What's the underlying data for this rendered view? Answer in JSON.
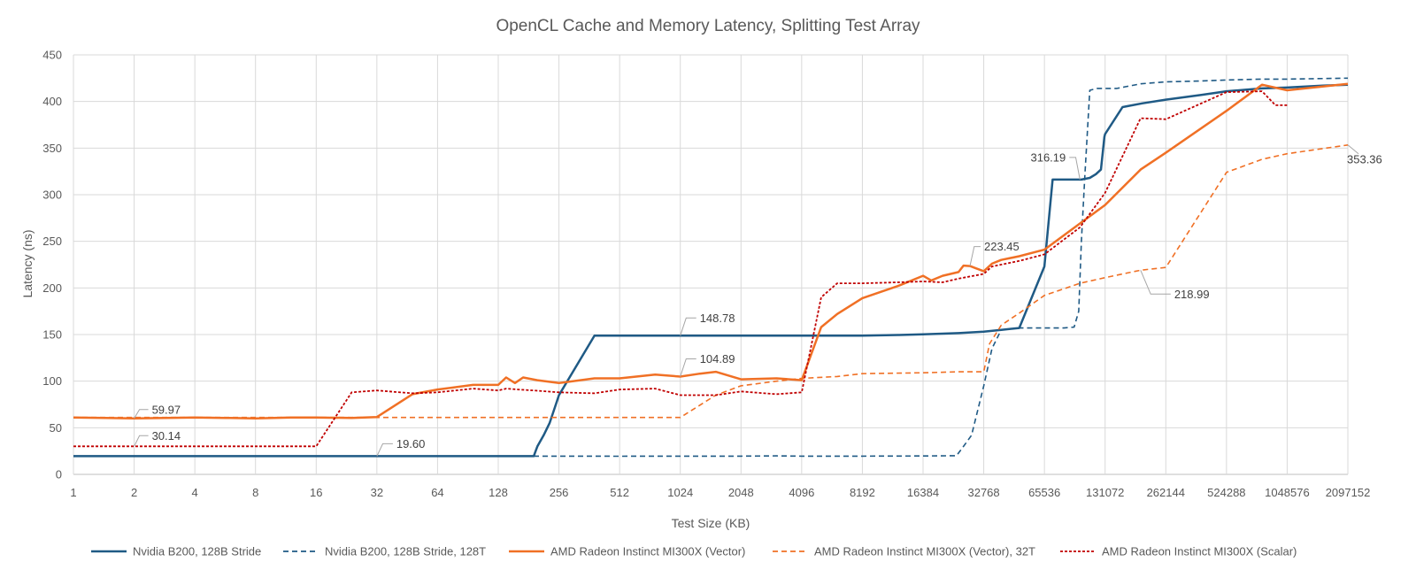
{
  "chart_data": {
    "type": "line",
    "title": "OpenCL Cache and Memory Latency, Splitting Test Array",
    "xlabel": "Test Size (KB)",
    "ylabel": "Latency (ns)",
    "x_scale": "log2",
    "xlim": [
      1,
      2097152
    ],
    "ylim": [
      0,
      450
    ],
    "y_ticks": [
      0,
      50,
      100,
      150,
      200,
      250,
      300,
      350,
      400,
      450
    ],
    "x_ticks": [
      "1",
      "2",
      "4",
      "8",
      "16",
      "32",
      "64",
      "128",
      "256",
      "512",
      "1024",
      "2048",
      "4096",
      "8192",
      "16384",
      "32768",
      "65536",
      "131072",
      "262144",
      "524288",
      "1048576",
      "2097152"
    ],
    "grid": true,
    "legend_position": "bottom",
    "colors": {
      "nvidia": "#1f5a85",
      "amd_vector": "#f07025",
      "amd_scalar": "#c00000",
      "grid": "#d9d9d9",
      "axis": "#bfbfbf",
      "text": "#595959"
    },
    "series": [
      {
        "name": "Nvidia B200, 128B Stride",
        "color": "#1f5a85",
        "dash": "solid",
        "points": [
          [
            1,
            19.6
          ],
          [
            2,
            19.6
          ],
          [
            4,
            19.6
          ],
          [
            8,
            19.6
          ],
          [
            16,
            19.6
          ],
          [
            32,
            19.6
          ],
          [
            64,
            19.6
          ],
          [
            128,
            19.6
          ],
          [
            192,
            19.6
          ],
          [
            200,
            30
          ],
          [
            215,
            42
          ],
          [
            230,
            55
          ],
          [
            256,
            85
          ],
          [
            320,
            120
          ],
          [
            384,
            148.78
          ],
          [
            512,
            148.78
          ],
          [
            1024,
            148.78
          ],
          [
            2048,
            148.78
          ],
          [
            4096,
            148.78
          ],
          [
            8192,
            148.78
          ],
          [
            12288,
            149.5
          ],
          [
            16384,
            150.2
          ],
          [
            24576,
            151.5
          ],
          [
            32768,
            153
          ],
          [
            40000,
            155
          ],
          [
            49152,
            157
          ],
          [
            65536,
            223
          ],
          [
            72000,
            316.19
          ],
          [
            90000,
            316.19
          ],
          [
            100000,
            316.19
          ],
          [
            110000,
            318
          ],
          [
            118000,
            322
          ],
          [
            125000,
            327
          ],
          [
            130000,
            362
          ],
          [
            131072,
            365
          ],
          [
            160000,
            394
          ],
          [
            200000,
            398
          ],
          [
            262144,
            402
          ],
          [
            393216,
            407
          ],
          [
            524288,
            411
          ],
          [
            786432,
            414
          ],
          [
            1048576,
            415
          ],
          [
            1572864,
            417
          ],
          [
            2097152,
            418
          ]
        ]
      },
      {
        "name": "Nvidia B200, 128B Stride, 128T",
        "color": "#1f5a85",
        "dash": "dashed",
        "points": [
          [
            1,
            19.6
          ],
          [
            4,
            19.6
          ],
          [
            16,
            19.6
          ],
          [
            64,
            19.6
          ],
          [
            128,
            19.6
          ],
          [
            256,
            19.6
          ],
          [
            512,
            19.5
          ],
          [
            1024,
            19.6
          ],
          [
            2048,
            19.6
          ],
          [
            3072,
            19.8
          ],
          [
            4096,
            19.6
          ],
          [
            8192,
            19.6
          ],
          [
            16384,
            19.7
          ],
          [
            24000,
            20
          ],
          [
            26000,
            30
          ],
          [
            28500,
            42
          ],
          [
            32768,
            95
          ],
          [
            36000,
            135
          ],
          [
            40000,
            155
          ],
          [
            49152,
            157
          ],
          [
            65536,
            157
          ],
          [
            81920,
            157
          ],
          [
            92000,
            158
          ],
          [
            97000,
            175
          ],
          [
            100000,
            250
          ],
          [
            104000,
            320
          ],
          [
            110000,
            412
          ],
          [
            120000,
            414
          ],
          [
            150000,
            414
          ],
          [
            196608,
            419
          ],
          [
            262144,
            421
          ],
          [
            393216,
            422
          ],
          [
            524288,
            423
          ],
          [
            786432,
            424
          ],
          [
            1048576,
            424
          ],
          [
            2097152,
            425
          ]
        ]
      },
      {
        "name": "AMD Radeon Instinct MI300X (Vector)",
        "color": "#f07025",
        "dash": "solid",
        "points": [
          [
            1,
            61
          ],
          [
            2,
            59.97
          ],
          [
            4,
            61
          ],
          [
            6,
            60.5
          ],
          [
            8,
            60
          ],
          [
            12,
            61
          ],
          [
            16,
            61
          ],
          [
            24,
            60.5
          ],
          [
            32,
            61.5
          ],
          [
            48,
            86
          ],
          [
            64,
            91
          ],
          [
            96,
            96
          ],
          [
            128,
            96
          ],
          [
            140,
            104
          ],
          [
            155,
            98
          ],
          [
            170,
            104
          ],
          [
            200,
            101
          ],
          [
            256,
            98
          ],
          [
            384,
            103
          ],
          [
            512,
            103
          ],
          [
            768,
            107
          ],
          [
            1024,
            104.89
          ],
          [
            1280,
            108
          ],
          [
            1536,
            110
          ],
          [
            2048,
            102
          ],
          [
            3072,
            103
          ],
          [
            4096,
            101
          ],
          [
            5120,
            158
          ],
          [
            6144,
            172
          ],
          [
            8192,
            189
          ],
          [
            12288,
            202
          ],
          [
            16384,
            213
          ],
          [
            18000,
            208
          ],
          [
            20480,
            213
          ],
          [
            24576,
            217
          ],
          [
            26000,
            224
          ],
          [
            28000,
            223.45
          ],
          [
            30000,
            221
          ],
          [
            32768,
            218
          ],
          [
            36000,
            226
          ],
          [
            40000,
            230
          ],
          [
            49152,
            234
          ],
          [
            65536,
            241
          ],
          [
            131072,
            289
          ],
          [
            196608,
            327
          ],
          [
            262144,
            345
          ],
          [
            524288,
            390
          ],
          [
            786432,
            418
          ],
          [
            1048576,
            412
          ],
          [
            2097152,
            419
          ]
        ]
      },
      {
        "name": "AMD Radeon Instinct MI300X (Vector), 32T",
        "color": "#f07025",
        "dash": "dashed",
        "points": [
          [
            1,
            61
          ],
          [
            2,
            61
          ],
          [
            4,
            61
          ],
          [
            8,
            61
          ],
          [
            16,
            61
          ],
          [
            32,
            61
          ],
          [
            64,
            61
          ],
          [
            128,
            61
          ],
          [
            256,
            61
          ],
          [
            512,
            61
          ],
          [
            1024,
            61
          ],
          [
            1536,
            85
          ],
          [
            2048,
            95
          ],
          [
            3072,
            100
          ],
          [
            4096,
            103
          ],
          [
            6144,
            105
          ],
          [
            8192,
            108
          ],
          [
            16384,
            109
          ],
          [
            24576,
            110
          ],
          [
            32768,
            110
          ],
          [
            35000,
            140
          ],
          [
            40000,
            160
          ],
          [
            49152,
            173
          ],
          [
            65536,
            192
          ],
          [
            98304,
            205
          ],
          [
            131072,
            211
          ],
          [
            196608,
            218.99
          ],
          [
            262144,
            222
          ],
          [
            524288,
            324
          ],
          [
            786432,
            338
          ],
          [
            1048576,
            344
          ],
          [
            2097152,
            353.36
          ]
        ]
      },
      {
        "name": "AMD Radeon Instinct MI300X (Scalar)",
        "color": "#c00000",
        "dash": "dotted",
        "points": [
          [
            1,
            30.14
          ],
          [
            2,
            30.14
          ],
          [
            4,
            30.14
          ],
          [
            8,
            30.14
          ],
          [
            16,
            30.14
          ],
          [
            24,
            88
          ],
          [
            32,
            90
          ],
          [
            48,
            87
          ],
          [
            64,
            88
          ],
          [
            96,
            92
          ],
          [
            128,
            90
          ],
          [
            140,
            92
          ],
          [
            160,
            91
          ],
          [
            192,
            90
          ],
          [
            256,
            88
          ],
          [
            384,
            87
          ],
          [
            512,
            91
          ],
          [
            768,
            92
          ],
          [
            1024,
            85
          ],
          [
            1536,
            85
          ],
          [
            2048,
            89
          ],
          [
            3072,
            86
          ],
          [
            4096,
            88
          ],
          [
            5120,
            190
          ],
          [
            6144,
            205
          ],
          [
            8192,
            205
          ],
          [
            12288,
            206
          ],
          [
            16384,
            207
          ],
          [
            20480,
            206
          ],
          [
            24576,
            210
          ],
          [
            32768,
            215
          ],
          [
            36000,
            223
          ],
          [
            49152,
            229
          ],
          [
            65536,
            236
          ],
          [
            98304,
            265
          ],
          [
            131072,
            302
          ],
          [
            196608,
            382
          ],
          [
            262144,
            381
          ],
          [
            524288,
            410
          ],
          [
            786432,
            411
          ],
          [
            917504,
            396
          ],
          [
            1048576,
            396
          ]
        ]
      }
    ],
    "annotations": [
      {
        "text": "59.97",
        "x": 2,
        "y": 59.97
      },
      {
        "text": "30.14",
        "x": 2,
        "y": 30.14
      },
      {
        "text": "19.60",
        "x": 32,
        "y": 19.6
      },
      {
        "text": "104.89",
        "x": 1024,
        "y": 104.89
      },
      {
        "text": "148.78",
        "x": 1024,
        "y": 148.78
      },
      {
        "text": "223.45",
        "x": 28000,
        "y": 223.45
      },
      {
        "text": "316.19",
        "x": 98304,
        "y": 316.19
      },
      {
        "text": "218.99",
        "x": 196608,
        "y": 218.99
      },
      {
        "text": "353.36",
        "x": 2097152,
        "y": 353.36
      }
    ]
  }
}
